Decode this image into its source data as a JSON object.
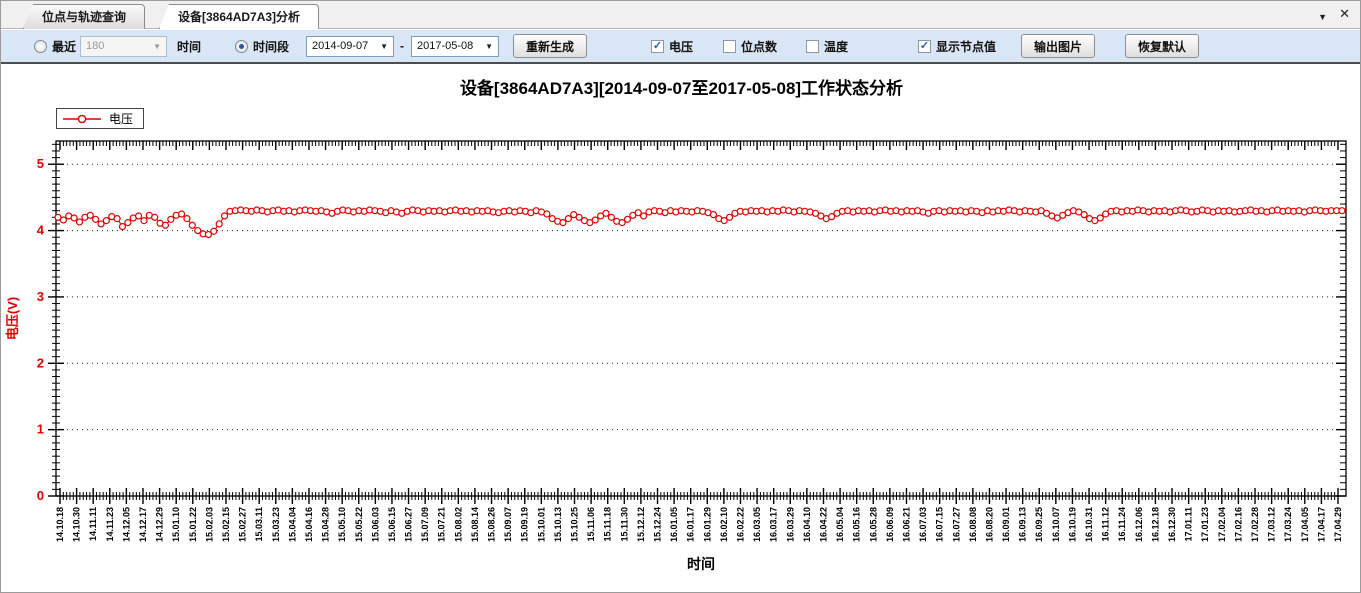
{
  "window": {
    "dropdown_icon": "▼",
    "close_icon": "✕"
  },
  "tabs": [
    {
      "label": "位点与轨迹查询",
      "active": false
    },
    {
      "label": "设备[3864AD7A3]分析",
      "active": true
    }
  ],
  "toolbar": {
    "recent_radio_label": "最近",
    "recent_value": "180",
    "recent_unit_label": "时间",
    "range_radio_label": "时间段",
    "date_from": "2014-09-07",
    "date_separator": "-",
    "date_to": "2017-05-08",
    "regenerate_button": "重新生成",
    "checkboxes": [
      {
        "label": "电压",
        "checked": true
      },
      {
        "label": "位点数",
        "checked": false
      },
      {
        "label": "温度",
        "checked": false
      },
      {
        "label": "显示节点值",
        "checked": true
      }
    ],
    "export_button": "输出图片",
    "reset_button": "恢复默认"
  },
  "chart_data": {
    "type": "line",
    "title": "设备[3864AD7A3][2014-09-07至2017-05-08]工作状态分析",
    "xlabel": "时间",
    "ylabel": "电压(V)",
    "ylim": [
      0,
      5.35
    ],
    "y_ticks": [
      0,
      1,
      2,
      3,
      4,
      5
    ],
    "grid": "dotted-horizontal",
    "legend_position": "top-left",
    "legend": [
      {
        "name": "电压",
        "color": "#e60000",
        "marker": "open-circle"
      }
    ],
    "x_labels": [
      "14.10.18",
      "14.10.30",
      "14.11.11",
      "14.11.23",
      "14.12.05",
      "14.12.17",
      "14.12.29",
      "15.01.10",
      "15.01.22",
      "15.02.03",
      "15.02.15",
      "15.02.27",
      "15.03.11",
      "15.03.23",
      "15.04.04",
      "15.04.16",
      "15.04.28",
      "15.05.10",
      "15.05.22",
      "15.06.03",
      "15.06.15",
      "15.06.27",
      "15.07.09",
      "15.07.21",
      "15.08.02",
      "15.08.14",
      "15.08.26",
      "15.09.07",
      "15.09.19",
      "15.10.01",
      "15.10.13",
      "15.10.25",
      "15.11.06",
      "15.11.18",
      "15.11.30",
      "15.12.12",
      "15.12.24",
      "16.01.05",
      "16.01.17",
      "16.01.29",
      "16.02.10",
      "16.02.22",
      "16.03.05",
      "16.03.17",
      "16.03.29",
      "16.04.10",
      "16.04.22",
      "16.05.04",
      "16.05.16",
      "16.05.28",
      "16.06.09",
      "16.06.21",
      "16.07.03",
      "16.07.15",
      "16.07.27",
      "16.08.08",
      "16.08.20",
      "16.09.01",
      "16.09.13",
      "16.09.25",
      "16.10.07",
      "16.10.19",
      "16.10.31",
      "16.11.12",
      "16.11.24",
      "16.12.06",
      "16.12.18",
      "16.12.30",
      "17.01.11",
      "17.01.23",
      "17.02.04",
      "17.02.16",
      "17.02.28",
      "17.03.12",
      "17.03.24",
      "17.04.05",
      "17.04.17",
      "17.04.29"
    ],
    "series": [
      {
        "name": "电压",
        "color": "#e60000",
        "marker": "open-circle",
        "values": [
          4.2,
          4.16,
          4.22,
          4.19,
          4.13,
          4.2,
          4.23,
          4.17,
          4.1,
          4.15,
          4.21,
          4.18,
          4.06,
          4.12,
          4.19,
          4.22,
          4.15,
          4.23,
          4.2,
          4.11,
          4.08,
          4.17,
          4.23,
          4.25,
          4.18,
          4.08,
          4.0,
          3.95,
          3.94,
          3.99,
          4.1,
          4.22,
          4.29,
          4.3,
          4.31,
          4.3,
          4.29,
          4.31,
          4.3,
          4.28,
          4.3,
          4.31,
          4.29,
          4.3,
          4.28,
          4.3,
          4.31,
          4.3,
          4.29,
          4.3,
          4.28,
          4.26,
          4.29,
          4.31,
          4.3,
          4.28,
          4.3,
          4.29,
          4.31,
          4.3,
          4.29,
          4.27,
          4.3,
          4.28,
          4.26,
          4.29,
          4.31,
          4.3,
          4.28,
          4.3,
          4.29,
          4.3,
          4.28,
          4.3,
          4.31,
          4.29,
          4.3,
          4.28,
          4.3,
          4.29,
          4.3,
          4.28,
          4.27,
          4.29,
          4.3,
          4.28,
          4.3,
          4.29,
          4.27,
          4.3,
          4.28,
          4.25,
          4.18,
          4.14,
          4.12,
          4.18,
          4.24,
          4.2,
          4.15,
          4.12,
          4.16,
          4.22,
          4.26,
          4.2,
          4.14,
          4.12,
          4.17,
          4.23,
          4.27,
          4.22,
          4.28,
          4.3,
          4.29,
          4.27,
          4.3,
          4.28,
          4.3,
          4.29,
          4.28,
          4.3,
          4.29,
          4.27,
          4.24,
          4.18,
          4.15,
          4.2,
          4.26,
          4.29,
          4.28,
          4.3,
          4.29,
          4.3,
          4.28,
          4.3,
          4.29,
          4.31,
          4.3,
          4.28,
          4.3,
          4.29,
          4.28,
          4.26,
          4.22,
          4.18,
          4.21,
          4.26,
          4.29,
          4.3,
          4.28,
          4.3,
          4.29,
          4.3,
          4.28,
          4.3,
          4.31,
          4.29,
          4.3,
          4.28,
          4.3,
          4.29,
          4.3,
          4.28,
          4.26,
          4.29,
          4.3,
          4.28,
          4.3,
          4.29,
          4.3,
          4.28,
          4.3,
          4.29,
          4.27,
          4.3,
          4.28,
          4.3,
          4.29,
          4.31,
          4.3,
          4.28,
          4.3,
          4.29,
          4.28,
          4.3,
          4.26,
          4.22,
          4.19,
          4.23,
          4.27,
          4.3,
          4.28,
          4.24,
          4.18,
          4.15,
          4.19,
          4.25,
          4.29,
          4.3,
          4.28,
          4.3,
          4.29,
          4.31,
          4.3,
          4.28,
          4.3,
          4.29,
          4.3,
          4.28,
          4.3,
          4.31,
          4.3,
          4.28,
          4.29,
          4.31,
          4.3,
          4.28,
          4.3,
          4.29,
          4.3,
          4.28,
          4.29,
          4.3,
          4.31,
          4.29,
          4.3,
          4.28,
          4.3,
          4.31,
          4.29,
          4.3,
          4.29,
          4.3,
          4.28,
          4.3,
          4.31,
          4.3,
          4.29,
          4.3,
          4.3,
          4.3
        ]
      }
    ]
  }
}
